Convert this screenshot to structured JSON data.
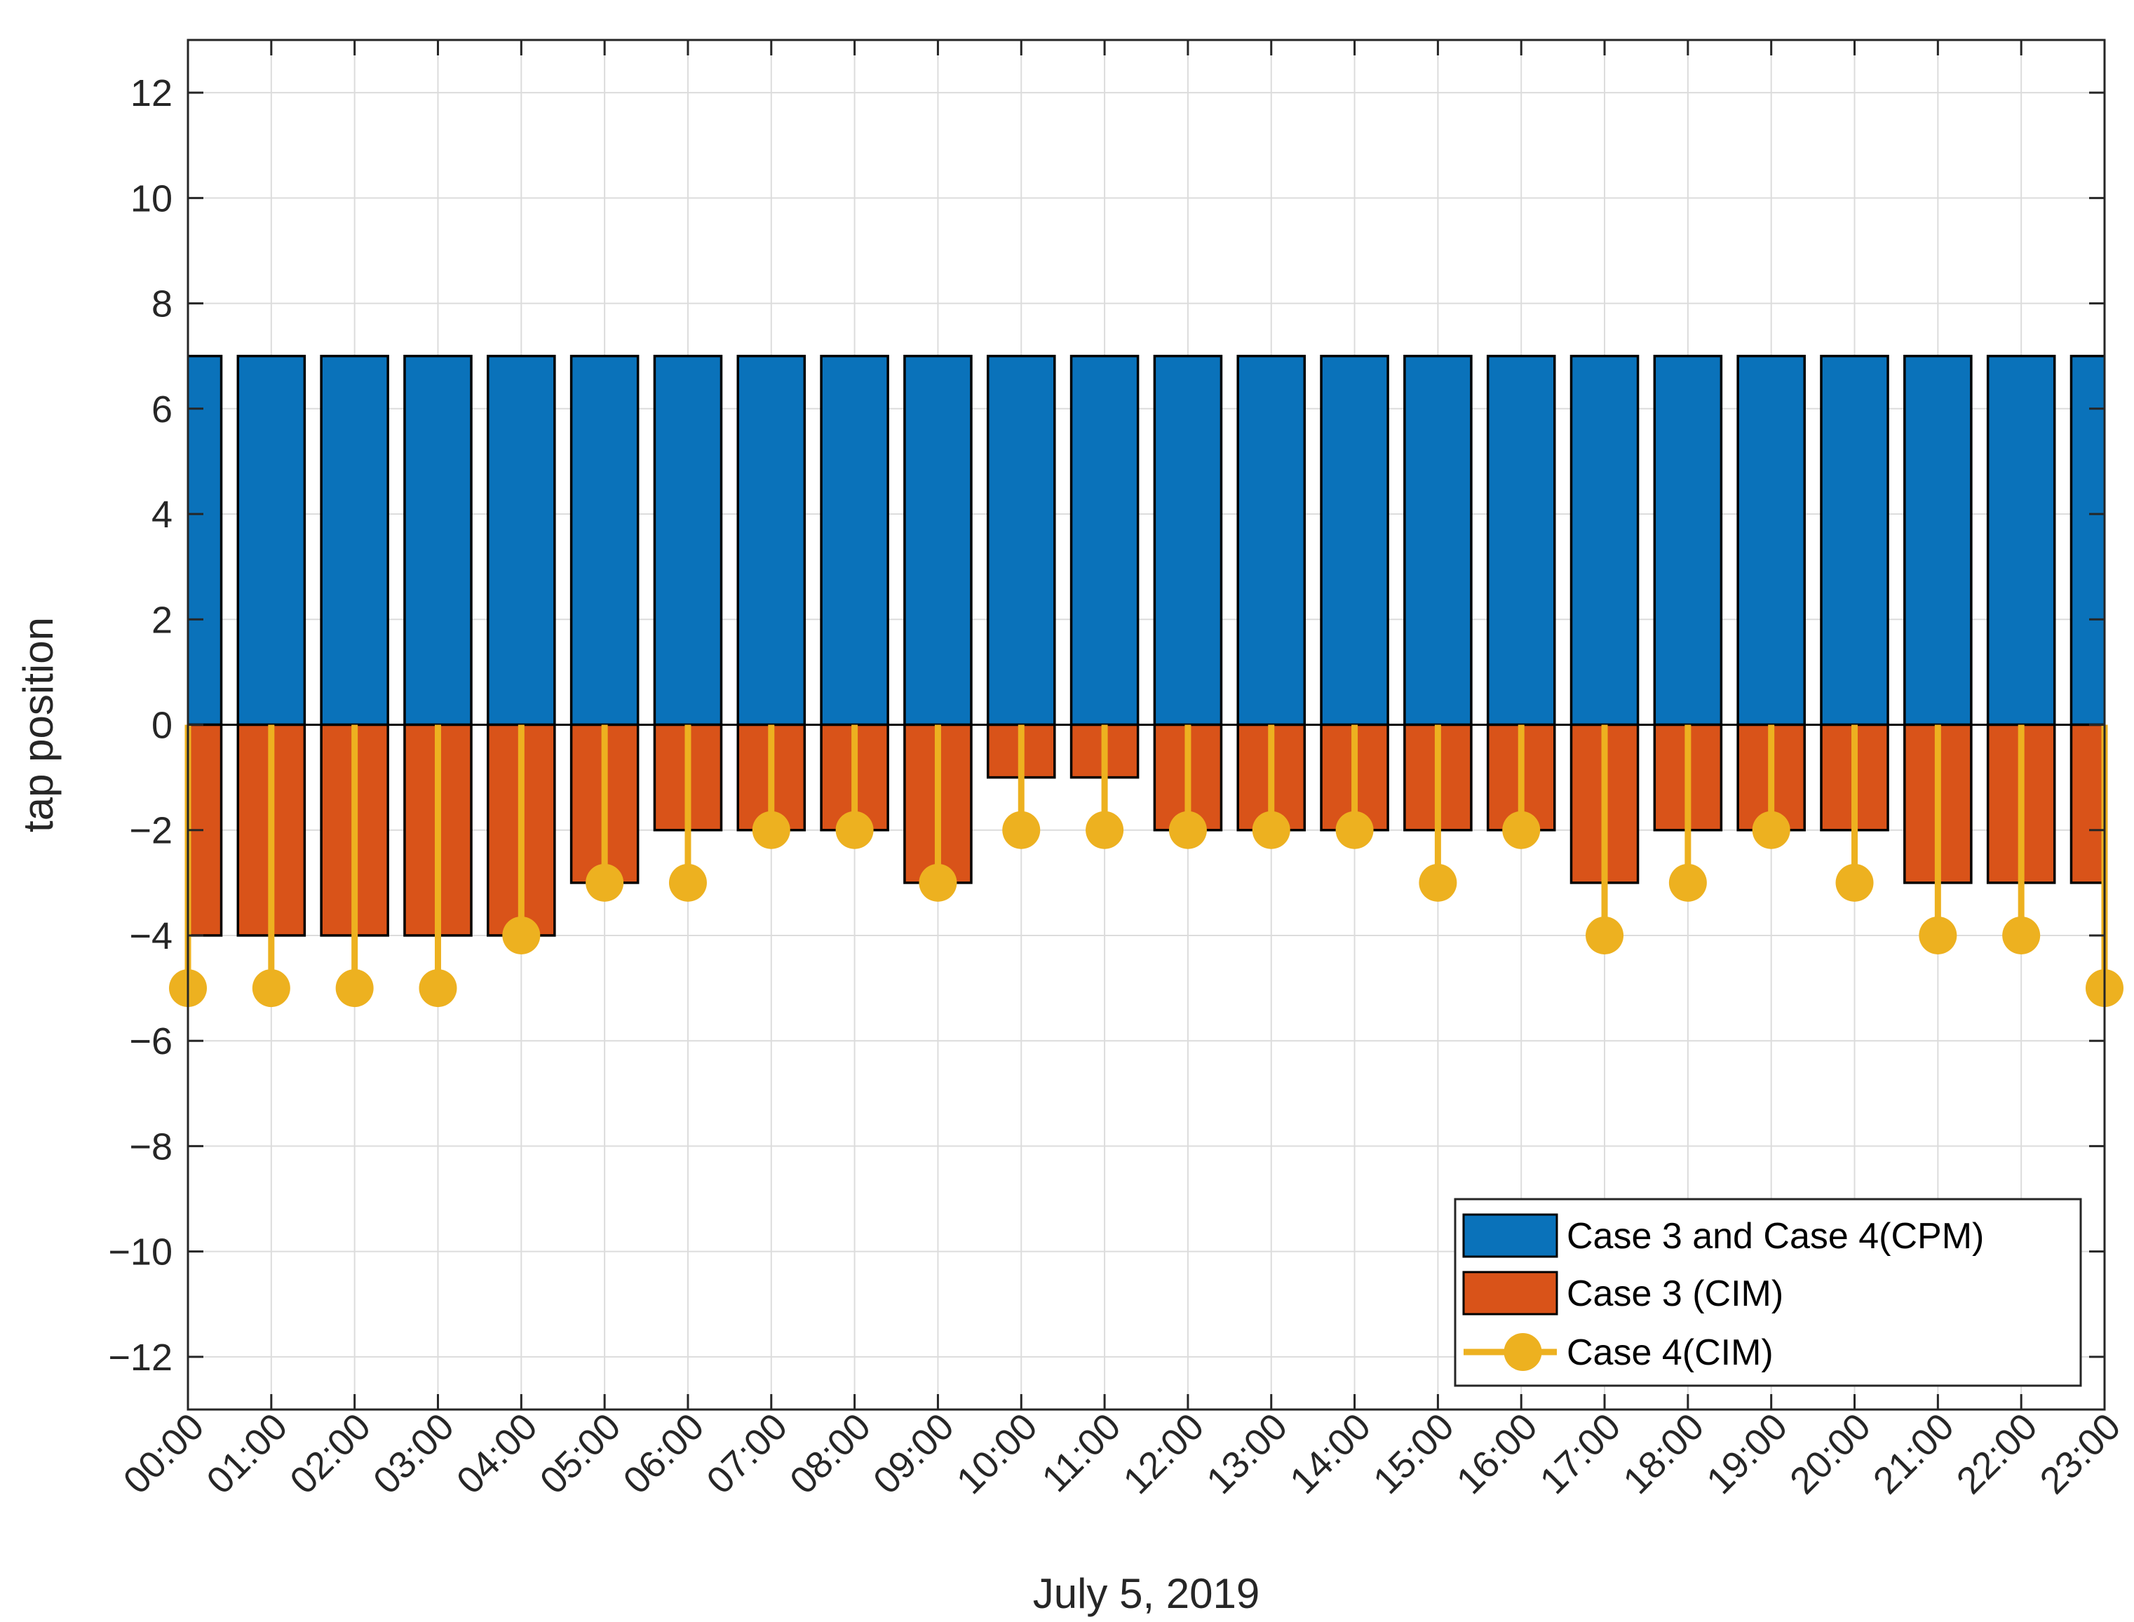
{
  "chart_data": {
    "type": "bar",
    "title": "",
    "xlabel": "July 5, 2019",
    "ylabel": "tap position",
    "ylim": [
      -13,
      13
    ],
    "yticks": [
      -12,
      -10,
      -8,
      -6,
      -4,
      -2,
      0,
      2,
      4,
      6,
      8,
      10,
      12
    ],
    "ytick_labels": [
      "−12",
      "−10",
      "−8",
      "−6",
      "−4",
      "−2",
      "0",
      "2",
      "4",
      "6",
      "8",
      "10",
      "12"
    ],
    "grid": true,
    "legend_location": "bottom-right",
    "categories": [
      "00:00",
      "01:00",
      "02:00",
      "03:00",
      "04:00",
      "05:00",
      "06:00",
      "07:00",
      "08:00",
      "09:00",
      "10:00",
      "11:00",
      "12:00",
      "13:00",
      "14:00",
      "15:00",
      "16:00",
      "17:00",
      "18:00",
      "19:00",
      "20:00",
      "21:00",
      "22:00",
      "23:00"
    ],
    "series": [
      {
        "name": "Case 3 and Case 4(CPM)",
        "kind": "bar",
        "color": "#0a72ba",
        "values": [
          7,
          7,
          7,
          7,
          7,
          7,
          7,
          7,
          7,
          7,
          7,
          7,
          7,
          7,
          7,
          7,
          7,
          7,
          7,
          7,
          7,
          7,
          7,
          7
        ]
      },
      {
        "name": "Case 3 (CIM)",
        "kind": "bar",
        "color": "#d95319",
        "values": [
          -4,
          -4,
          -4,
          -4,
          -4,
          -3,
          -2,
          -2,
          -2,
          -3,
          -1,
          -1,
          -2,
          -2,
          -2,
          -2,
          -2,
          -3,
          -2,
          -2,
          -2,
          -3,
          -3,
          -3
        ]
      },
      {
        "name": "Case 4(CIM)",
        "kind": "stem",
        "color": "#edb120",
        "values": [
          -5,
          -5,
          -5,
          -5,
          -4,
          -3,
          -3,
          -2,
          -2,
          -3,
          -2,
          -2,
          -2,
          -2,
          -2,
          -3,
          -2,
          -4,
          -3,
          -2,
          -3,
          -4,
          -4,
          -5
        ]
      }
    ]
  }
}
